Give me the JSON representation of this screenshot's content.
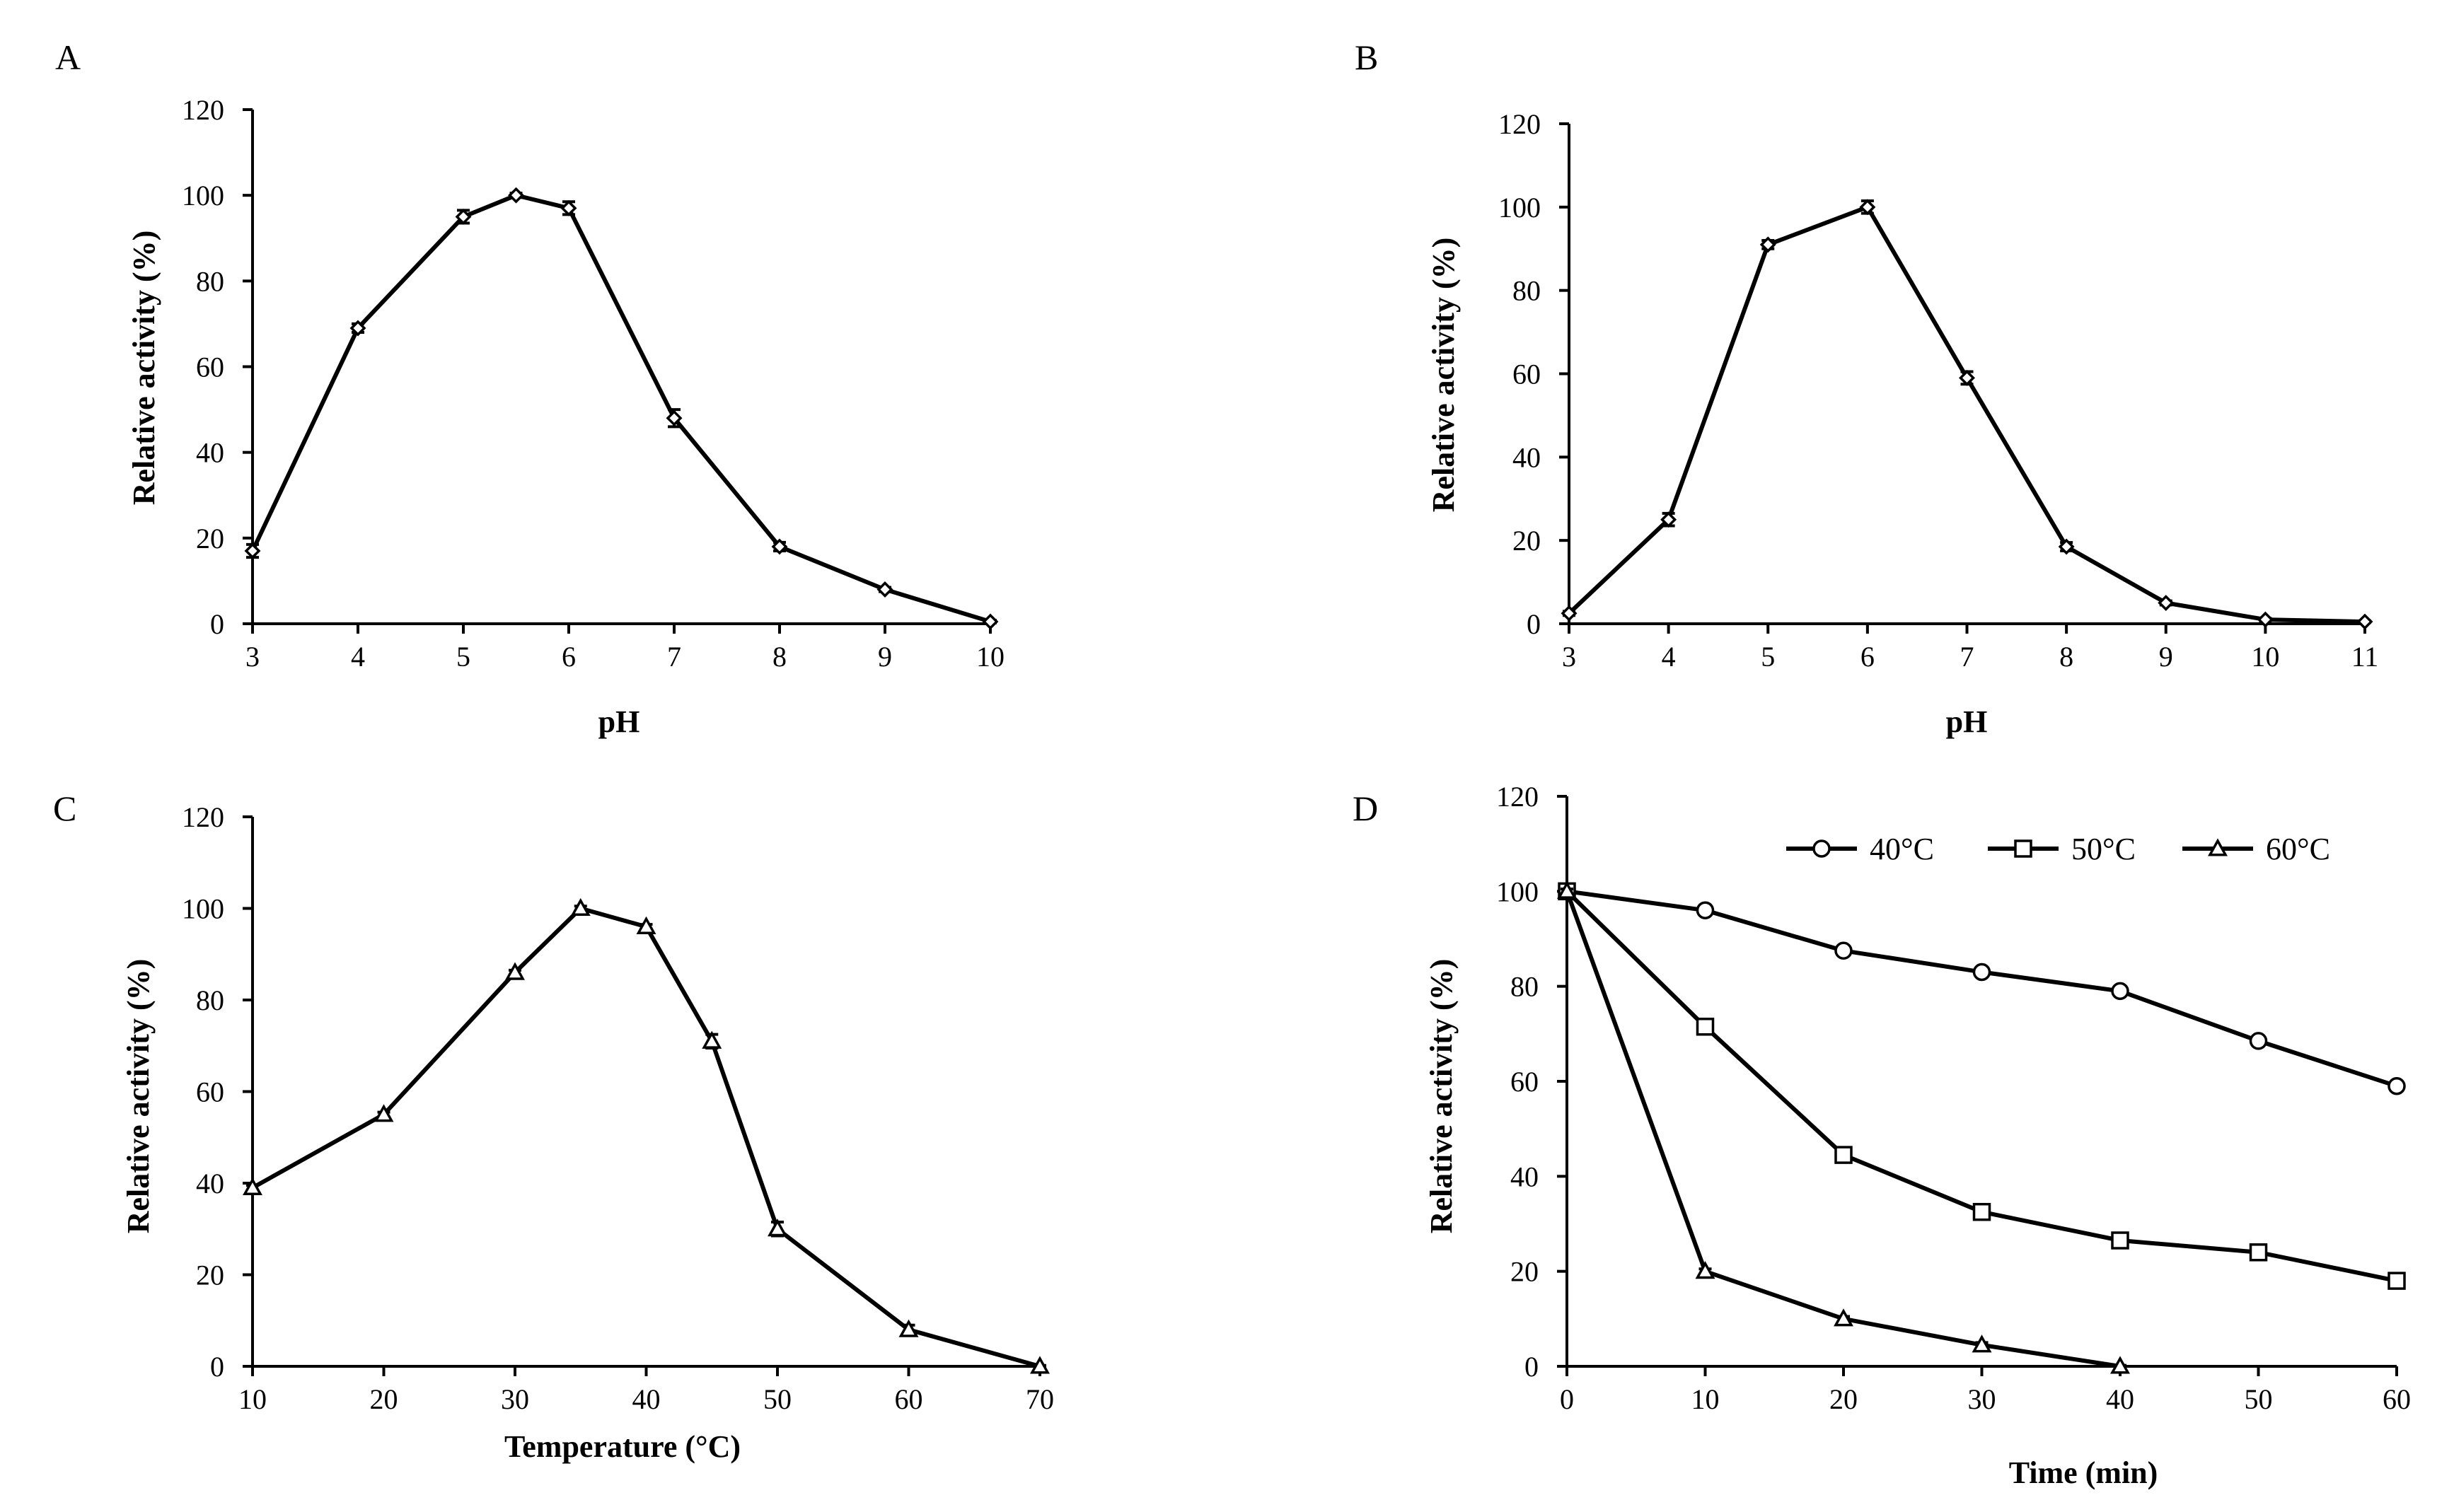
{
  "chart_data": [
    {
      "panel": "A",
      "type": "line",
      "xlabel": "pH",
      "ylabel": "Relative activity (%)",
      "xlim": [
        3,
        10
      ],
      "ylim": [
        0,
        120
      ],
      "xticks": [
        3,
        4,
        5,
        6,
        7,
        8,
        9,
        10
      ],
      "yticks": [
        0,
        20,
        40,
        60,
        80,
        100,
        120
      ],
      "marker": "diamond",
      "series": [
        {
          "x": [
            3,
            4,
            5,
            5.5,
            6,
            7,
            8,
            9,
            10
          ],
          "y": [
            17,
            69,
            95,
            100,
            97,
            48,
            18,
            8,
            0.5
          ],
          "error": [
            1.5,
            1,
            1.5,
            0.5,
            1.5,
            2,
            1,
            0.5,
            0.3
          ]
        }
      ]
    },
    {
      "panel": "B",
      "type": "line",
      "xlabel": "pH",
      "ylabel": "Relative activity (%)",
      "xlim": [
        3,
        11
      ],
      "ylim": [
        0,
        120
      ],
      "xticks": [
        3,
        4,
        5,
        6,
        7,
        8,
        9,
        10,
        11
      ],
      "yticks": [
        0,
        20,
        40,
        60,
        80,
        100,
        120
      ],
      "marker": "diamond",
      "series": [
        {
          "x": [
            3,
            4,
            5,
            6,
            7,
            8,
            9,
            10,
            11
          ],
          "y": [
            2.5,
            25,
            91,
            100,
            59,
            18.5,
            5,
            1,
            0.5
          ],
          "error": [
            0.5,
            1.5,
            1,
            1.5,
            1.5,
            1,
            0.5,
            0.3,
            0.2
          ]
        }
      ]
    },
    {
      "panel": "C",
      "type": "line",
      "xlabel": "Temperature (°C)",
      "ylabel": "Relative activity (%)",
      "xlim": [
        10,
        70
      ],
      "ylim": [
        0,
        120
      ],
      "xticks": [
        10,
        20,
        30,
        40,
        50,
        60,
        70
      ],
      "yticks": [
        0,
        20,
        40,
        60,
        80,
        100,
        120
      ],
      "marker": "triangle",
      "series": [
        {
          "x": [
            10,
            20,
            30,
            35,
            40,
            45,
            50,
            60,
            70
          ],
          "y": [
            39,
            55,
            86,
            100,
            96,
            71,
            30,
            8,
            0
          ],
          "error": [
            0.5,
            0.5,
            0.5,
            0.5,
            0.5,
            1.5,
            1.5,
            1,
            0.2
          ]
        }
      ]
    },
    {
      "panel": "D",
      "type": "line",
      "xlabel": "Time (min)",
      "ylabel": "Relative activity (%)",
      "xlim": [
        0,
        60
      ],
      "ylim": [
        0,
        120
      ],
      "xticks": [
        0,
        10,
        20,
        30,
        40,
        50,
        60
      ],
      "yticks": [
        0,
        20,
        40,
        60,
        80,
        100,
        120
      ],
      "legend": "top-right",
      "series": [
        {
          "name": "40°C",
          "marker": "circle",
          "x": [
            0,
            10,
            20,
            30,
            40,
            50,
            60
          ],
          "y": [
            100,
            96,
            87.5,
            83,
            79,
            68.5,
            59
          ],
          "error": [
            0.5,
            1,
            0.5,
            0.5,
            0.5,
            0.5,
            0.5
          ]
        },
        {
          "name": "50°C",
          "marker": "square",
          "x": [
            0,
            10,
            20,
            30,
            40,
            50,
            60
          ],
          "y": [
            100,
            71.5,
            44.5,
            32.5,
            26.5,
            24,
            18
          ],
          "error": [
            0.5,
            1.5,
            0.5,
            0.5,
            0.5,
            0.5,
            0.5
          ]
        },
        {
          "name": "60°C",
          "marker": "triangle",
          "x": [
            0,
            10,
            20,
            30,
            40
          ],
          "y": [
            100,
            20,
            10,
            4.5,
            0
          ],
          "error": [
            0.5,
            0.5,
            0.5,
            0.5,
            0.2
          ]
        }
      ]
    }
  ]
}
